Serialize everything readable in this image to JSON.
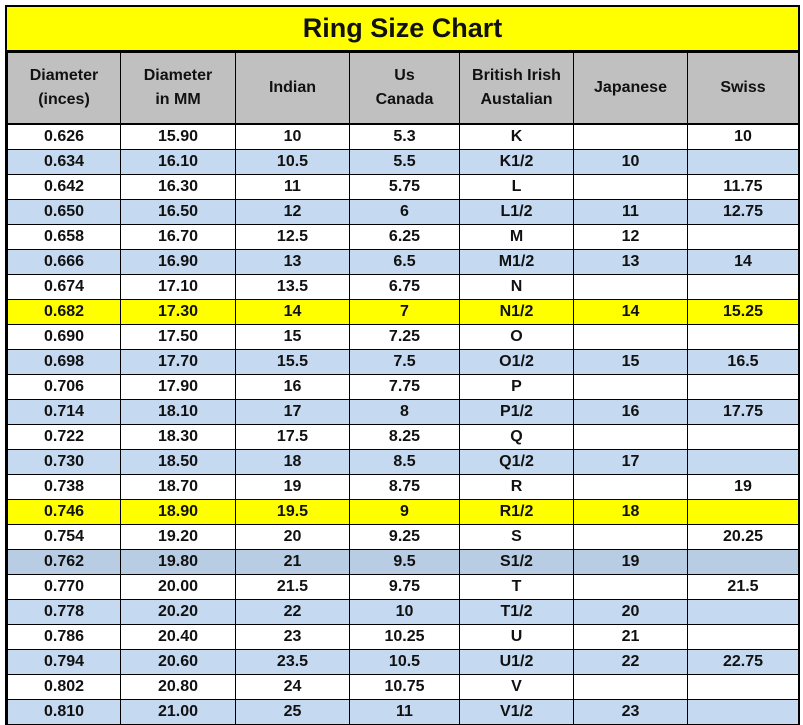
{
  "title": "Ring Size Chart",
  "columns": [
    "Diameter\n(inces)",
    "Diameter\nin MM",
    "Indian",
    "Us\nCanada",
    "British Irish\nAustalian",
    "Japanese",
    "Swiss"
  ],
  "colors": {
    "title_bg": "#ffff00",
    "header_bg": "#c0c0c0",
    "stripe": "#c5d9f1",
    "stripe_dark": "#b8cce4",
    "highlight": "#ffff00"
  },
  "rows": [
    {
      "style": "white",
      "cells": [
        "0.626",
        "15.90",
        "10",
        "5.3",
        "K",
        "",
        "10"
      ]
    },
    {
      "style": "blue",
      "cells": [
        "0.634",
        "16.10",
        "10.5",
        "5.5",
        "K1/2",
        "10",
        ""
      ]
    },
    {
      "style": "white",
      "cells": [
        "0.642",
        "16.30",
        "11",
        "5.75",
        "L",
        "",
        "11.75"
      ]
    },
    {
      "style": "blue",
      "cells": [
        "0.650",
        "16.50",
        "12",
        "6",
        "L1/2",
        "11",
        "12.75"
      ]
    },
    {
      "style": "white",
      "cells": [
        "0.658",
        "16.70",
        "12.5",
        "6.25",
        "M",
        "12",
        ""
      ]
    },
    {
      "style": "blue",
      "cells": [
        "0.666",
        "16.90",
        "13",
        "6.5",
        "M1/2",
        "13",
        "14"
      ]
    },
    {
      "style": "white",
      "cells": [
        "0.674",
        "17.10",
        "13.5",
        "6.75",
        "N",
        "",
        ""
      ]
    },
    {
      "style": "yellow",
      "cells": [
        "0.682",
        "17.30",
        "14",
        "7",
        "N1/2",
        "14",
        "15.25"
      ]
    },
    {
      "style": "white",
      "cells": [
        "0.690",
        "17.50",
        "15",
        "7.25",
        "O",
        "",
        ""
      ]
    },
    {
      "style": "blue",
      "cells": [
        "0.698",
        "17.70",
        "15.5",
        "7.5",
        "O1/2",
        "15",
        "16.5"
      ]
    },
    {
      "style": "white",
      "cells": [
        "0.706",
        "17.90",
        "16",
        "7.75",
        "P",
        "",
        ""
      ]
    },
    {
      "style": "blue",
      "cells": [
        "0.714",
        "18.10",
        "17",
        "8",
        "P1/2",
        "16",
        "17.75"
      ]
    },
    {
      "style": "white",
      "cells": [
        "0.722",
        "18.30",
        "17.5",
        "8.25",
        "Q",
        "",
        ""
      ]
    },
    {
      "style": "blue",
      "cells": [
        "0.730",
        "18.50",
        "18",
        "8.5",
        "Q1/2",
        "17",
        ""
      ]
    },
    {
      "style": "white",
      "cells": [
        "0.738",
        "18.70",
        "19",
        "8.75",
        "R",
        "",
        "19"
      ]
    },
    {
      "style": "yellow",
      "cells": [
        "0.746",
        "18.90",
        "19.5",
        "9",
        "R1/2",
        "18",
        ""
      ]
    },
    {
      "style": "white",
      "cells": [
        "0.754",
        "19.20",
        "20",
        "9.25",
        "S",
        "",
        "20.25"
      ]
    },
    {
      "style": "dark",
      "cells": [
        "0.762",
        "19.80",
        "21",
        "9.5",
        "S1/2",
        "19",
        ""
      ]
    },
    {
      "style": "white",
      "cells": [
        "0.770",
        "20.00",
        "21.5",
        "9.75",
        "T",
        "",
        "21.5"
      ]
    },
    {
      "style": "blue",
      "cells": [
        "0.778",
        "20.20",
        "22",
        "10",
        "T1/2",
        "20",
        ""
      ]
    },
    {
      "style": "white",
      "cells": [
        "0.786",
        "20.40",
        "23",
        "10.25",
        "U",
        "21",
        ""
      ]
    },
    {
      "style": "blue",
      "cells": [
        "0.794",
        "20.60",
        "23.5",
        "10.5",
        "U1/2",
        "22",
        "22.75"
      ]
    },
    {
      "style": "white",
      "cells": [
        "0.802",
        "20.80",
        "24",
        "10.75",
        "V",
        "",
        ""
      ]
    },
    {
      "style": "blue",
      "cells": [
        "0.810",
        "21.00",
        "25",
        "11",
        "V1/2",
        "23",
        ""
      ]
    }
  ]
}
